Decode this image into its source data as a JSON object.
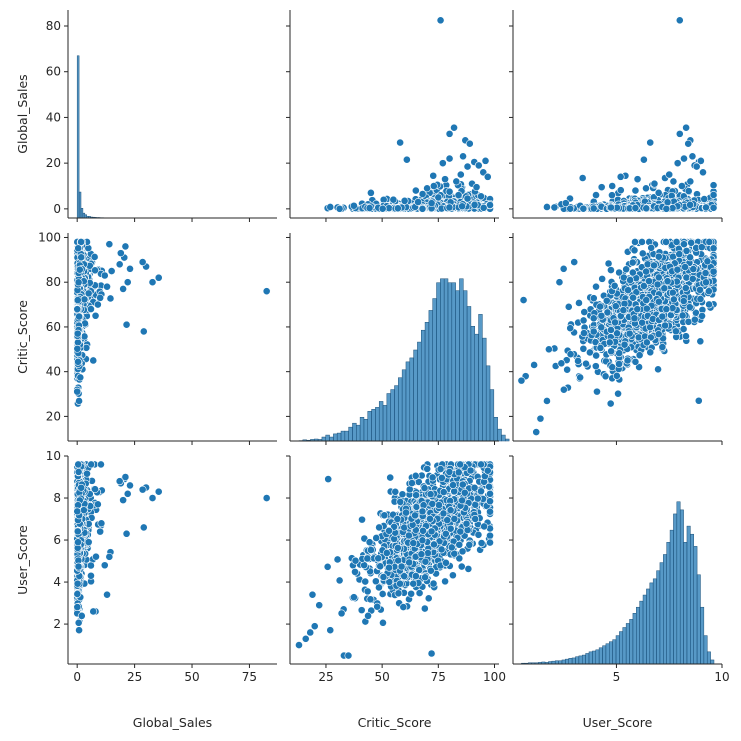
{
  "chart_data": {
    "type": "scatter",
    "title": "",
    "variables": [
      "Global_Sales",
      "Critic_Score",
      "User_Score"
    ],
    "layout": "pairplot: histograms on diagonal, scatter off-diagonal",
    "color": "#1f77b4",
    "axes": {
      "Global_Sales": {
        "label": "Global_Sales",
        "range": [
          -4,
          87
        ],
        "ticks": [
          0,
          20,
          40,
          60,
          80
        ],
        "tick_labels": [
          "0",
          "20",
          "40",
          "60",
          "80"
        ],
        "bottom_tick_labels": [
          "0",
          "25",
          "50",
          "75"
        ],
        "bottom_ticks": [
          0,
          25,
          50,
          75
        ]
      },
      "Critic_Score": {
        "label": "Critic_Score",
        "range": [
          9,
          102
        ],
        "ticks": [
          20,
          40,
          60,
          80,
          100
        ],
        "tick_labels": [
          "20",
          "40",
          "60",
          "80",
          "100"
        ],
        "bottom_ticks": [
          25,
          50,
          75,
          100
        ],
        "bottom_tick_labels": [
          "25",
          "50",
          "75",
          "100"
        ]
      },
      "User_Score": {
        "label": "User_Score",
        "range": [
          0.1,
          10.0
        ],
        "ticks": [
          2,
          4,
          6,
          8,
          10
        ],
        "tick_labels": [
          "2",
          "4",
          "6",
          "8",
          "10"
        ],
        "bottom_ticks": [
          5,
          10
        ],
        "bottom_tick_labels": [
          "5",
          "10"
        ]
      }
    },
    "histograms": {
      "Global_Sales": {
        "bin_start": 0,
        "bin_width": 0.83,
        "counts": [
          100,
          16,
          6,
          3,
          2,
          1,
          1,
          0.6,
          0.5,
          0.4,
          0.3,
          0.3,
          0.2,
          0.2,
          0.1,
          0.1,
          0.1,
          0.1,
          0.1,
          0.1
        ]
      },
      "Critic_Score": {
        "bin_start": 13,
        "bin_width": 1.7,
        "counts": [
          0.1,
          0.3,
          0.2,
          0.4,
          0.5,
          0.4,
          1,
          1.5,
          1,
          1.8,
          2,
          2.5,
          2.5,
          3.5,
          4.5,
          4,
          6,
          5.5,
          7.5,
          8,
          8.5,
          10,
          9,
          12,
          13,
          14,
          16,
          18,
          20,
          21,
          23,
          25,
          28,
          30,
          33,
          36,
          40,
          41,
          41,
          40,
          40,
          38,
          41,
          38,
          34,
          29,
          27,
          32,
          26,
          19,
          13,
          6,
          3,
          1.5,
          0.5
        ]
      },
      "User_Score": {
        "bin_start": 0.5,
        "bin_width": 0.16,
        "counts": [
          0.2,
          0.2,
          0.3,
          0.3,
          0.3,
          0.4,
          0.5,
          0.4,
          0.6,
          0.7,
          0.8,
          0.8,
          1,
          1.2,
          1.4,
          1.5,
          1.8,
          2,
          2.2,
          2.6,
          3,
          3.2,
          3.5,
          4,
          4.5,
          5,
          5.5,
          6,
          7,
          8,
          9,
          10,
          11,
          12.5,
          14,
          15.5,
          17,
          18.5,
          20,
          21,
          23,
          25,
          27,
          30,
          33,
          37,
          40,
          38,
          30,
          34,
          32,
          29,
          22,
          14,
          7,
          3,
          1
        ]
      }
    },
    "scatter_pairs": {
      "Critic_Score__vs__Global_Sales": {
        "x_var": "Critic_Score",
        "y_var": "Global_Sales",
        "points": [
          [
            76,
            82.5
          ],
          [
            82,
            35.5
          ],
          [
            80,
            32.8
          ],
          [
            87,
            30
          ],
          [
            89,
            28.5
          ],
          [
            58,
            29
          ],
          [
            61,
            21.5
          ],
          [
            80,
            22
          ],
          [
            91,
            20.5
          ],
          [
            96,
            21
          ],
          [
            86,
            23
          ],
          [
            77,
            20
          ],
          [
            93,
            19
          ],
          [
            88,
            18.5
          ],
          [
            85,
            15
          ],
          [
            95,
            16
          ],
          [
            97,
            14
          ],
          [
            78,
            13
          ],
          [
            83,
            12
          ],
          [
            90,
            11
          ],
          [
            73,
            10
          ],
          [
            92,
            9.5
          ],
          [
            70,
            9
          ],
          [
            65,
            8
          ],
          [
            45,
            7
          ],
          [
            68,
            6.5
          ],
          [
            80,
            7.5
          ],
          [
            84,
            6
          ],
          [
            75,
            5
          ],
          [
            55,
            4
          ],
          [
            60,
            3.5
          ],
          [
            88,
            4.5
          ],
          [
            94,
            5.5
          ],
          [
            66,
            3
          ],
          [
            72,
            2.5
          ]
        ]
      },
      "User_Score__vs__Global_Sales": {
        "x_var": "User_Score",
        "y_var": "Global_Sales",
        "points": [
          [
            8.0,
            82.5
          ],
          [
            8.3,
            35.5
          ],
          [
            8.0,
            32.8
          ],
          [
            8.5,
            30
          ],
          [
            8.4,
            28.5
          ],
          [
            6.6,
            29
          ],
          [
            6.3,
            21.5
          ],
          [
            8.2,
            22
          ],
          [
            8.9,
            20.5
          ],
          [
            9.0,
            21
          ],
          [
            8.6,
            23
          ],
          [
            7.9,
            20
          ],
          [
            8.7,
            19
          ],
          [
            8.8,
            18.5
          ],
          [
            4.8,
            10
          ],
          [
            4.3,
            9.5
          ],
          [
            3.4,
            13.5
          ],
          [
            5.2,
            14
          ],
          [
            6.0,
            13
          ],
          [
            7.3,
            13.5
          ],
          [
            7.7,
            12
          ],
          [
            8.5,
            12
          ],
          [
            6.8,
            11
          ],
          [
            2.8,
            4.5
          ],
          [
            2.6,
            2.5
          ],
          [
            6.4,
            9
          ],
          [
            7.5,
            15
          ],
          [
            9.1,
            16
          ],
          [
            5.9,
            8
          ],
          [
            8.1,
            10
          ],
          [
            7.0,
            7
          ]
        ]
      },
      "Global_Sales__vs__Critic_Score": {
        "x_var": "Global_Sales",
        "y_var": "Critic_Score",
        "points": [
          [
            82.5,
            76
          ],
          [
            35.5,
            82
          ],
          [
            32.8,
            80
          ],
          [
            30,
            87
          ],
          [
            28.5,
            89
          ],
          [
            29,
            58
          ],
          [
            21.5,
            61
          ],
          [
            22,
            80
          ],
          [
            20.5,
            91
          ],
          [
            21,
            96
          ],
          [
            23,
            86
          ],
          [
            20,
            77
          ],
          [
            19,
            93
          ],
          [
            18.5,
            88
          ],
          [
            15,
            85
          ],
          [
            14,
            97
          ],
          [
            13,
            78
          ],
          [
            12,
            83
          ],
          [
            10,
            73
          ],
          [
            9,
            70
          ],
          [
            8,
            65
          ],
          [
            7,
            45
          ],
          [
            6,
            68
          ],
          [
            5,
            75
          ]
        ]
      },
      "User_Score__vs__Critic_Score": {
        "x_var": "User_Score",
        "y_var": "Critic_Score",
        "points": [
          [
            8.2,
            97
          ],
          [
            0.6,
            72
          ],
          [
            0.7,
            38
          ],
          [
            0.5,
            36
          ],
          [
            1.4,
            19
          ],
          [
            1.2,
            13
          ],
          [
            8.9,
            27
          ],
          [
            9.4,
            98
          ],
          [
            2.3,
            80
          ],
          [
            2.5,
            86
          ],
          [
            3.0,
            89
          ],
          [
            1.8,
            50
          ],
          [
            1.1,
            43
          ]
        ]
      },
      "Global_Sales__vs__User_Score": {
        "x_var": "Global_Sales",
        "y_var": "User_Score",
        "points": [
          [
            82.5,
            8.0
          ],
          [
            35.5,
            8.3
          ],
          [
            32.8,
            8.0
          ],
          [
            30,
            8.5
          ],
          [
            28.5,
            8.4
          ],
          [
            29,
            6.6
          ],
          [
            21.5,
            6.3
          ],
          [
            22,
            8.2
          ],
          [
            20.5,
            8.9
          ],
          [
            21,
            9.0
          ],
          [
            23,
            8.6
          ],
          [
            20,
            7.9
          ],
          [
            19,
            8.7
          ],
          [
            18.5,
            8.8
          ],
          [
            13,
            3.4
          ],
          [
            14,
            5.2
          ],
          [
            12,
            4.8
          ],
          [
            10,
            6.4
          ],
          [
            9,
            7.7
          ],
          [
            8,
            2.6
          ],
          [
            7,
            2.6
          ],
          [
            6,
            4.3
          ],
          [
            5,
            5.9
          ]
        ]
      },
      "Critic_Score__vs__User_Score": {
        "x_var": "Critic_Score",
        "y_var": "User_Score",
        "points": [
          [
            13,
            1.0
          ],
          [
            26,
            8.9
          ],
          [
            72,
            0.6
          ],
          [
            33,
            0.5
          ],
          [
            35,
            0.5
          ],
          [
            18,
            1.6
          ],
          [
            20,
            1.9
          ],
          [
            22,
            2.9
          ],
          [
            19,
            3.4
          ],
          [
            16,
            1.3
          ],
          [
            97,
            9.3
          ],
          [
            94,
            9.6
          ]
        ]
      }
    }
  }
}
